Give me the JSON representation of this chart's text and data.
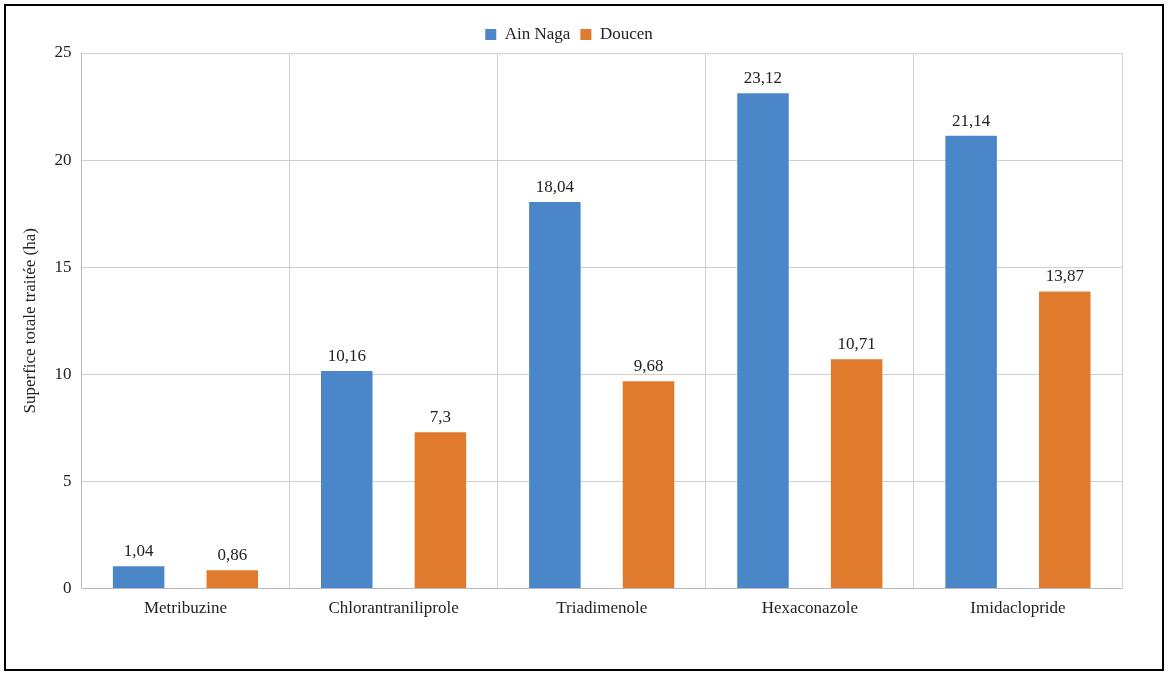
{
  "chart_data": {
    "type": "bar",
    "ylabel": "Superfice totale traitée (ha)",
    "categories": [
      "Metribuzine",
      "Chlorantraniliprole",
      "Triadimenole",
      "Hexaconazole",
      "Imidaclopride"
    ],
    "series": [
      {
        "name": "Ain Naga",
        "color": "#4a86c8",
        "values": [
          1.04,
          10.16,
          18.04,
          23.12,
          21.14
        ],
        "value_labels": [
          "1,04",
          "10,16",
          "18,04",
          "23,12",
          "21,14"
        ]
      },
      {
        "name": "Doucen",
        "color": "#e07a2c",
        "values": [
          0.86,
          7.3,
          9.68,
          10.71,
          13.87
        ],
        "value_labels": [
          "0,86",
          "7,3",
          "9,68",
          "10,71",
          "13,87"
        ]
      }
    ],
    "ylim": [
      0,
      25
    ],
    "yticks": [
      0,
      5,
      10,
      15,
      20,
      25
    ],
    "grid": true,
    "legend": "top"
  }
}
